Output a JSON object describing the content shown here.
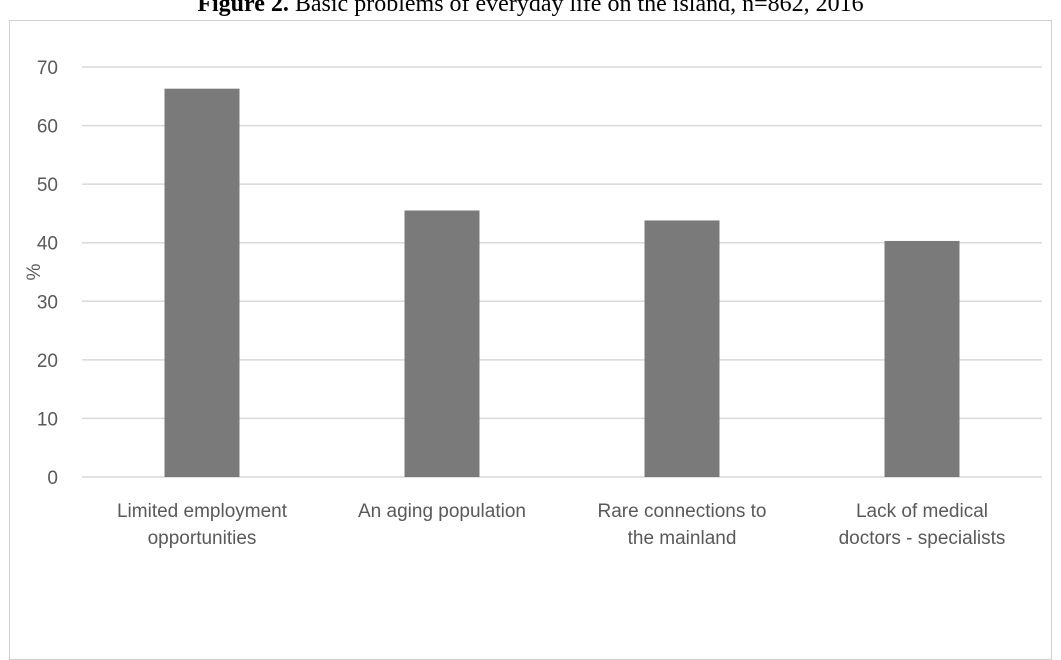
{
  "figure": {
    "caption_label": "Figure 2.",
    "caption_text": "Basic problems of everyday life on the island, n=862, 2016"
  },
  "chart_data": {
    "type": "bar",
    "title": "Basic problems of everyday life on the island, n=862, 2016",
    "xlabel": "",
    "ylabel": "%",
    "categories": [
      [
        "Limited employment",
        "opportunities"
      ],
      [
        "An aging population"
      ],
      [
        "Rare connections to",
        "the mainland"
      ],
      [
        "Lack of medical",
        "doctors - specialists"
      ]
    ],
    "values": [
      66.3,
      45.5,
      43.8,
      40.3
    ],
    "ylim": [
      0,
      70
    ],
    "yticks": [
      0,
      10,
      20,
      30,
      40,
      50,
      60,
      70
    ],
    "grid": true,
    "bar_color": "#7a7a7a",
    "grid_color": "#d9d9d9"
  }
}
